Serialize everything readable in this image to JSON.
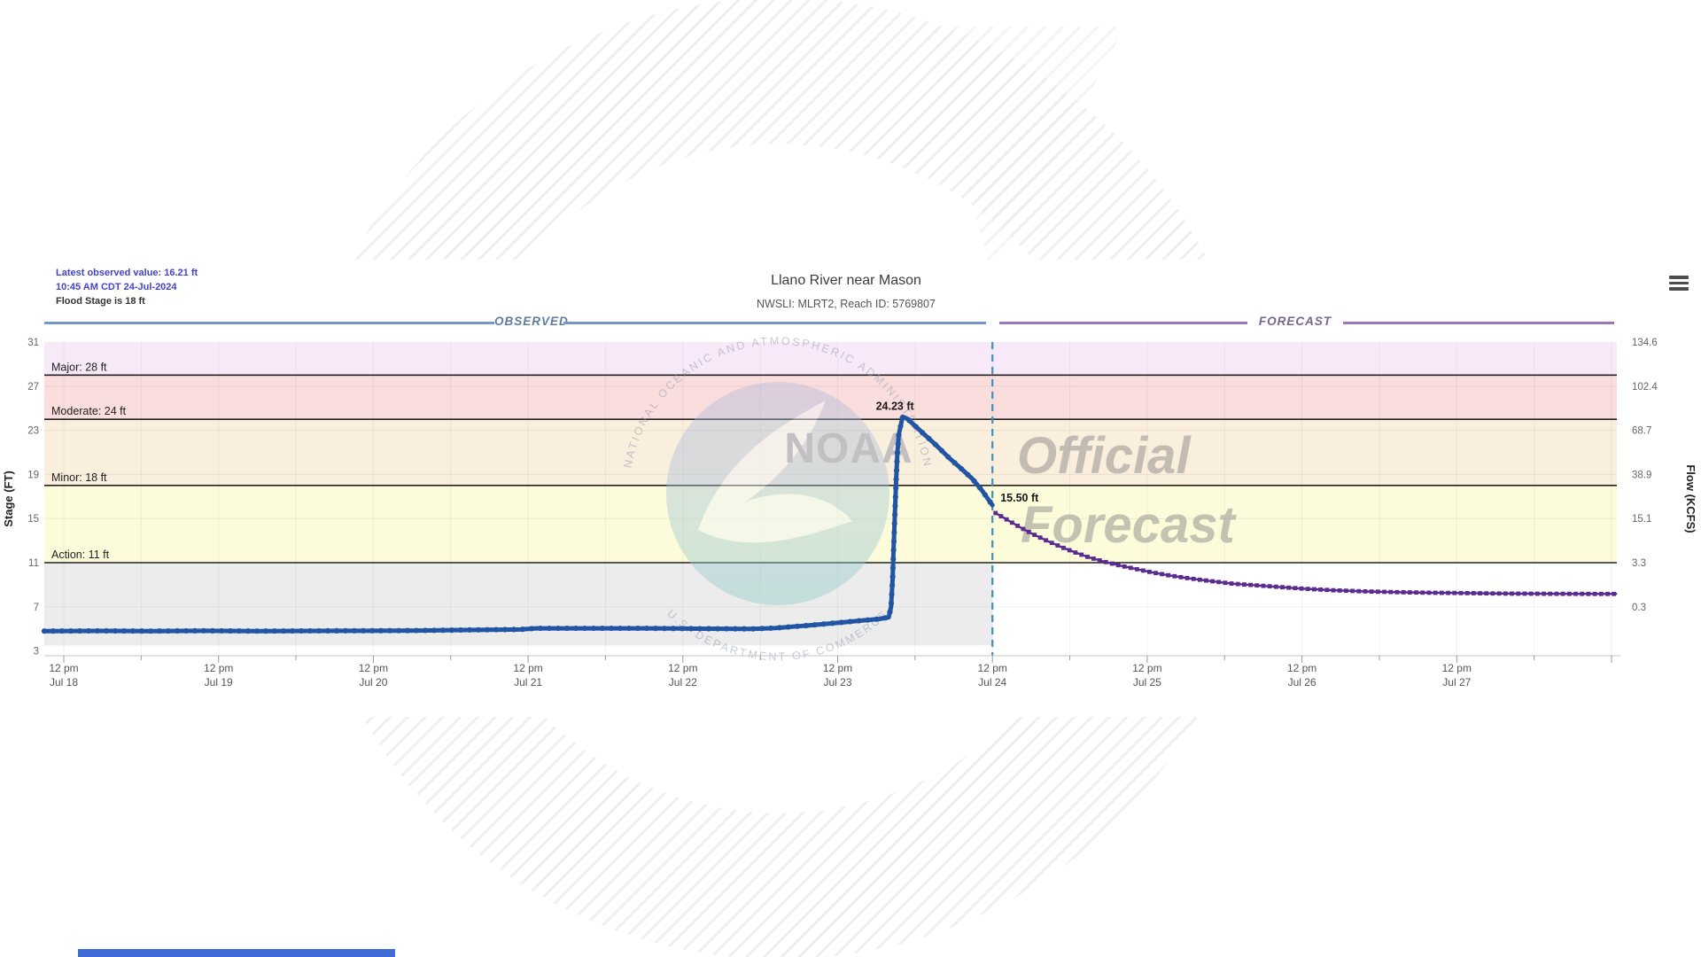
{
  "info_box": {
    "latest_observed": "Latest observed value: 16.21 ft",
    "observed_time": "10:45 AM CDT 24-Jul-2024",
    "flood_stage": "Flood Stage is 18 ft"
  },
  "title": "Llano River near Mason",
  "subtitle": "NWSLI: MLRT2, Reach ID: 5769807",
  "sections": {
    "observed": "OBSERVED",
    "forecast": "FORECAST"
  },
  "watermarks": {
    "noaa_text": "NOAA",
    "ring_top": "NATIONAL OCEANIC AND ATMOSPHERIC ADMINISTRATION",
    "ring_bottom": "U.S. DEPARTMENT OF COMMERCE",
    "official_line1": "Official",
    "official_line2": "Forecast"
  },
  "colors": {
    "observed": "#2155a4",
    "forecast": "#5b2c8f",
    "forecast_divider": "#4090c0",
    "observed_header": "#5b7da0",
    "forecast_header": "#776590"
  },
  "chart_data": {
    "type": "line",
    "title": "Llano River near Mason",
    "subtitle": "NWSLI: MLRT2, Reach ID: 5769807",
    "x_axis": {
      "unit": "days since Jul 18 12pm CDT",
      "range_days": [
        -0.126,
        10.03
      ],
      "minor_tick_every_days": 0.5,
      "ticks": [
        {
          "d": 0,
          "time": "12 pm",
          "date": "Jul 18"
        },
        {
          "d": 1,
          "time": "12 pm",
          "date": "Jul 19"
        },
        {
          "d": 2,
          "time": "12 pm",
          "date": "Jul 20"
        },
        {
          "d": 3,
          "time": "12 pm",
          "date": "Jul 21"
        },
        {
          "d": 4,
          "time": "12 pm",
          "date": "Jul 22"
        },
        {
          "d": 5,
          "time": "12 pm",
          "date": "Jul 23"
        },
        {
          "d": 6,
          "time": "12 pm",
          "date": "Jul 24"
        },
        {
          "d": 7,
          "time": "12 pm",
          "date": "Jul 25"
        },
        {
          "d": 8,
          "time": "12 pm",
          "date": "Jul 26"
        },
        {
          "d": 9,
          "time": "12 pm",
          "date": "Jul 27"
        }
      ]
    },
    "y_left": {
      "label": "Stage (FT)",
      "ticks": [
        31,
        27,
        23,
        19,
        15,
        11,
        7,
        3
      ],
      "range": [
        2.3,
        31
      ]
    },
    "y_right": {
      "label": "Flow (KCFS)",
      "ticks": [
        "134.6",
        "102.4",
        "68.7",
        "38.9",
        "15.1",
        "3.3",
        "0.3"
      ]
    },
    "gridline_stages": [
      27,
      23,
      19,
      15,
      7
    ],
    "flood_categories": [
      {
        "label": "Major: 28 ft",
        "stage": 28
      },
      {
        "label": "Moderate: 24 ft",
        "stage": 24
      },
      {
        "label": "Minor: 18 ft",
        "stage": 18
      },
      {
        "label": "Action: 11 ft",
        "stage": 11
      }
    ],
    "bands": [
      {
        "from": 28,
        "to": 31,
        "color": "#f8e9f9"
      },
      {
        "from": 24,
        "to": 28,
        "color": "#fadddd"
      },
      {
        "from": 18,
        "to": 24,
        "color": "#faeedd"
      },
      {
        "from": 11,
        "to": 18,
        "color": "#fcfcdb"
      },
      {
        "from": 3.5,
        "to": 11,
        "color": "#ececec",
        "end_d": 6
      }
    ],
    "forecast_start_d": 6,
    "series": [
      {
        "name": "observed",
        "color": "#2155a4",
        "marker": "circle",
        "points": [
          [
            -0.126,
            4.8
          ],
          [
            0.2,
            4.82
          ],
          [
            0.55,
            4.8
          ],
          [
            0.9,
            4.83
          ],
          [
            1.25,
            4.8
          ],
          [
            1.6,
            4.82
          ],
          [
            1.95,
            4.83
          ],
          [
            2.3,
            4.85
          ],
          [
            2.6,
            4.9
          ],
          [
            2.95,
            4.95
          ],
          [
            3.05,
            5.05
          ],
          [
            3.4,
            5.05
          ],
          [
            3.75,
            5.05
          ],
          [
            4.1,
            5.02
          ],
          [
            4.45,
            5.0
          ],
          [
            4.6,
            5.08
          ],
          [
            4.8,
            5.3
          ],
          [
            5.0,
            5.55
          ],
          [
            5.15,
            5.75
          ],
          [
            5.27,
            5.9
          ],
          [
            5.33,
            6.05
          ],
          [
            5.345,
            7.0
          ],
          [
            5.355,
            9.5
          ],
          [
            5.362,
            12.5
          ],
          [
            5.37,
            15.5
          ],
          [
            5.378,
            18.5
          ],
          [
            5.386,
            21.0
          ],
          [
            5.395,
            22.6
          ],
          [
            5.41,
            23.6
          ],
          [
            5.42,
            24.23
          ],
          [
            5.45,
            24.05
          ],
          [
            5.5,
            23.4
          ],
          [
            5.57,
            22.5
          ],
          [
            5.64,
            21.6
          ],
          [
            5.72,
            20.5
          ],
          [
            5.8,
            19.5
          ],
          [
            5.87,
            18.6
          ],
          [
            5.93,
            17.6
          ],
          [
            5.97,
            16.8
          ],
          [
            6.0,
            16.21
          ]
        ]
      },
      {
        "name": "forecast",
        "color": "#5b2c8f",
        "marker": "square",
        "points": [
          [
            6.02,
            15.5
          ],
          [
            6.1,
            14.85
          ],
          [
            6.18,
            14.2
          ],
          [
            6.26,
            13.6
          ],
          [
            6.35,
            13.0
          ],
          [
            6.44,
            12.45
          ],
          [
            6.53,
            11.95
          ],
          [
            6.62,
            11.5
          ],
          [
            6.72,
            11.1
          ],
          [
            6.82,
            10.75
          ],
          [
            6.92,
            10.45
          ],
          [
            7.02,
            10.15
          ],
          [
            7.14,
            9.85
          ],
          [
            7.26,
            9.6
          ],
          [
            7.4,
            9.35
          ],
          [
            7.55,
            9.1
          ],
          [
            7.7,
            8.95
          ],
          [
            7.85,
            8.8
          ],
          [
            8.0,
            8.65
          ],
          [
            8.2,
            8.5
          ],
          [
            8.4,
            8.4
          ],
          [
            8.6,
            8.33
          ],
          [
            8.8,
            8.28
          ],
          [
            9.0,
            8.25
          ],
          [
            9.3,
            8.2
          ],
          [
            9.6,
            8.18
          ],
          [
            9.9,
            8.17
          ],
          [
            10.03,
            8.17
          ]
        ]
      }
    ],
    "annotations": [
      {
        "text": "24.23 ft",
        "d": 5.37,
        "stage": 24.23,
        "dx": 0,
        "dy": -8,
        "anchor": "middle"
      },
      {
        "text": "15.50 ft",
        "d": 6.04,
        "stage": 16.55,
        "dx": 2,
        "dy": 0,
        "anchor": "start"
      }
    ]
  }
}
